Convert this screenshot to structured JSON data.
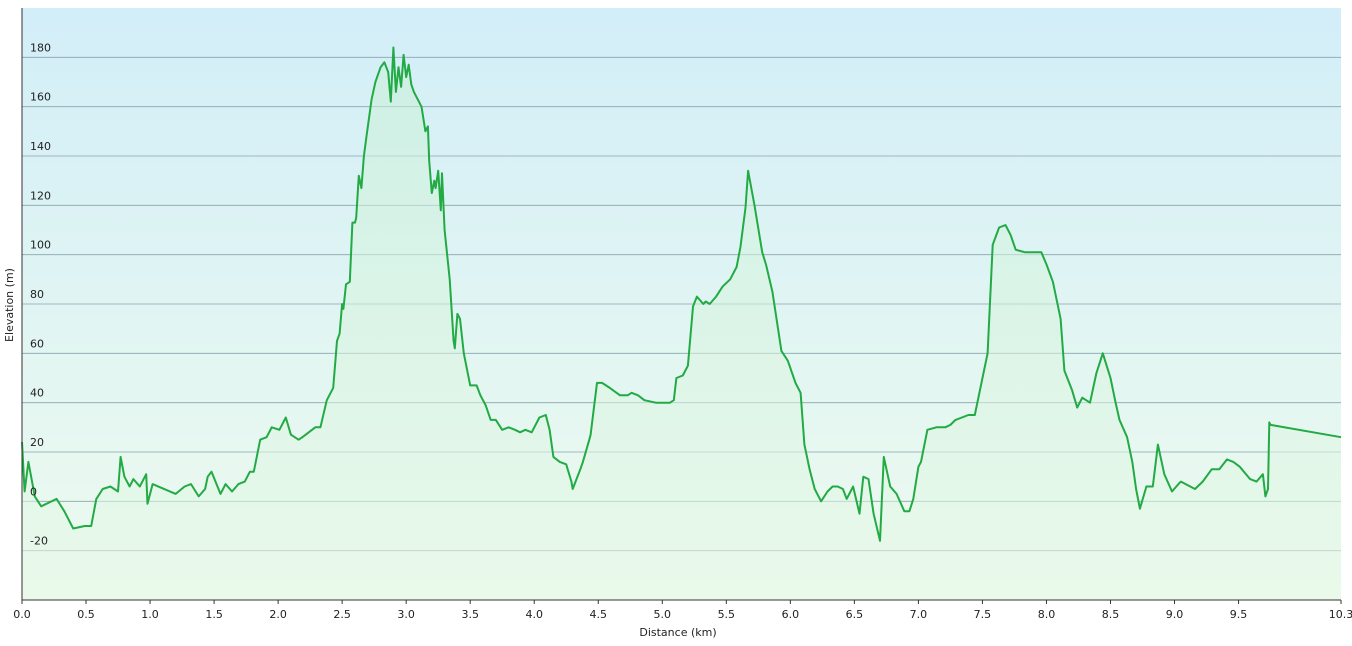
{
  "chart_data": {
    "type": "area",
    "x_label": "Distance  (km)",
    "y_label": "Elevation (m)",
    "x": [
      0,
      0.02,
      0.05,
      0.1,
      0.15,
      0.27,
      0.33,
      0.4,
      0.49,
      0.54,
      0.58,
      0.63,
      0.69,
      0.75,
      0.77,
      0.8,
      0.84,
      0.87,
      0.92,
      0.97,
      0.98,
      1.02,
      1.2,
      1.27,
      1.32,
      1.38,
      1.43,
      1.45,
      1.48,
      1.55,
      1.59,
      1.64,
      1.69,
      1.74,
      1.78,
      1.81,
      1.86,
      1.91,
      1.95,
      2.01,
      2.06,
      2.1,
      2.16,
      2.19,
      2.29,
      2.33,
      2.38,
      2.43,
      2.46,
      2.48,
      2.5,
      2.51,
      2.53,
      2.56,
      2.58,
      2.6,
      2.61,
      2.63,
      2.65,
      2.67,
      2.69,
      2.73,
      2.76,
      2.8,
      2.83,
      2.86,
      2.88,
      2.9,
      2.92,
      2.94,
      2.96,
      2.98,
      3.0,
      3.02,
      3.04,
      3.06,
      3.09,
      3.12,
      3.15,
      3.17,
      3.18,
      3.2,
      3.22,
      3.23,
      3.25,
      3.27,
      3.28,
      3.3,
      3.34,
      3.37,
      3.38,
      3.4,
      3.42,
      3.45,
      3.5,
      3.55,
      3.58,
      3.62,
      3.66,
      3.7,
      3.75,
      3.8,
      3.85,
      3.89,
      3.93,
      3.98,
      4.04,
      4.09,
      4.12,
      4.15,
      4.2,
      4.25,
      4.29,
      4.3,
      4.33,
      4.36,
      4.38,
      4.43,
      4.44,
      4.49,
      4.53,
      4.59,
      4.67,
      4.73,
      4.76,
      4.81,
      4.86,
      4.95,
      5.06,
      5.09,
      5.11,
      5.16,
      5.2,
      5.24,
      5.27,
      5.32,
      5.34,
      5.37,
      5.42,
      5.47,
      5.53,
      5.58,
      5.61,
      5.65,
      5.67,
      5.72,
      5.78,
      5.81,
      5.86,
      5.93,
      5.98,
      6.04,
      6.08,
      6.11,
      6.15,
      6.19,
      6.24,
      6.29,
      6.33,
      6.37,
      6.41,
      6.44,
      6.49,
      6.54,
      6.57,
      6.61,
      6.65,
      6.7,
      6.73,
      6.78,
      6.83,
      6.89,
      6.93,
      6.96,
      7.0,
      7.02,
      7.07,
      7.14,
      7.21,
      7.25,
      7.29,
      7.34,
      7.39,
      7.44,
      7.54,
      7.58,
      7.63,
      7.68,
      7.72,
      7.76,
      7.83,
      7.96,
      8.0,
      8.05,
      8.11,
      8.14,
      8.2,
      8.24,
      8.28,
      8.34,
      8.39,
      8.44,
      8.5,
      8.54,
      8.57,
      8.63,
      8.67,
      8.7,
      8.73,
      8.78,
      8.83,
      8.87,
      8.92,
      8.98,
      9.03,
      9.05,
      9.16,
      9.22,
      9.29,
      9.35,
      9.41,
      9.46,
      9.51,
      9.59,
      9.64,
      9.69,
      9.71,
      9.73,
      9.74,
      9.75,
      10.3
    ],
    "values": [
      24,
      4,
      16,
      2,
      -2,
      1,
      -4,
      -11,
      -10,
      -10,
      1,
      5,
      6,
      4,
      18,
      10,
      6,
      9,
      6,
      11,
      -1,
      7,
      3,
      6,
      7,
      2,
      5,
      10,
      12,
      3,
      7,
      4,
      7,
      8,
      12,
      12,
      25,
      26,
      30,
      29,
      34,
      27,
      25,
      26,
      30,
      30,
      41,
      46,
      65,
      68,
      80,
      78,
      88,
      89,
      113,
      113,
      115,
      132,
      127,
      140,
      148,
      163,
      170,
      176,
      178,
      174,
      162,
      184,
      166,
      176,
      168,
      181,
      172,
      177,
      169,
      166,
      163,
      160,
      150,
      152,
      138,
      125,
      130,
      127,
      134,
      118,
      133,
      110,
      90,
      65,
      62,
      76,
      74,
      60,
      47,
      47,
      43,
      39,
      33,
      33,
      29,
      30,
      29,
      28,
      29,
      28,
      34,
      35,
      29,
      18,
      16,
      15,
      8,
      5,
      9,
      13,
      16,
      25,
      27,
      48,
      48,
      46,
      43,
      43,
      44,
      43,
      41,
      40,
      40,
      41,
      50,
      51,
      55,
      79,
      83,
      80,
      81,
      80,
      83,
      87,
      90,
      95,
      103,
      119,
      134,
      120,
      101,
      96,
      85,
      61,
      57,
      48,
      44,
      23,
      13,
      5,
      0,
      4,
      6,
      6,
      5,
      1,
      6,
      -5,
      10,
      9,
      -5,
      -16,
      18,
      6,
      3,
      -4,
      -4,
      1,
      14,
      16,
      29,
      30,
      30,
      31,
      33,
      34,
      35,
      35,
      60,
      104,
      111,
      112,
      108,
      102,
      101,
      101,
      96,
      89,
      74,
      53,
      45,
      38,
      42,
      40,
      52,
      60,
      50,
      40,
      33,
      26,
      16,
      5,
      -3,
      6,
      6,
      23,
      11,
      4,
      7,
      8,
      5,
      8,
      13,
      13,
      17,
      16,
      14,
      9,
      8,
      11,
      2,
      5,
      32,
      31,
      26
    ],
    "color": "#22aa44",
    "xlim": [
      0,
      10.3
    ],
    "xticks": [
      {
        "value": 0,
        "label": "0.0"
      },
      0.5,
      {
        "value": 1,
        "label": "1.0"
      },
      1.5,
      {
        "value": 2,
        "label": "2.0"
      },
      2.5,
      {
        "value": 3,
        "label": "3.0"
      },
      3.5,
      {
        "value": 4,
        "label": "4.0"
      },
      4.5,
      {
        "value": 5,
        "label": "5.0"
      },
      5.5,
      {
        "value": 6,
        "label": "6.0"
      },
      6.5,
      {
        "value": 7,
        "label": "7.0"
      },
      7.5,
      {
        "value": 8,
        "label": "8.0"
      },
      8.5,
      {
        "value": 9,
        "label": "9.0"
      },
      9.5,
      10.3
    ],
    "ylim": [
      -40,
      200
    ],
    "yticks": [
      -20,
      0,
      20,
      40,
      60,
      80,
      100,
      120,
      140,
      160,
      180
    ],
    "grid": true
  }
}
